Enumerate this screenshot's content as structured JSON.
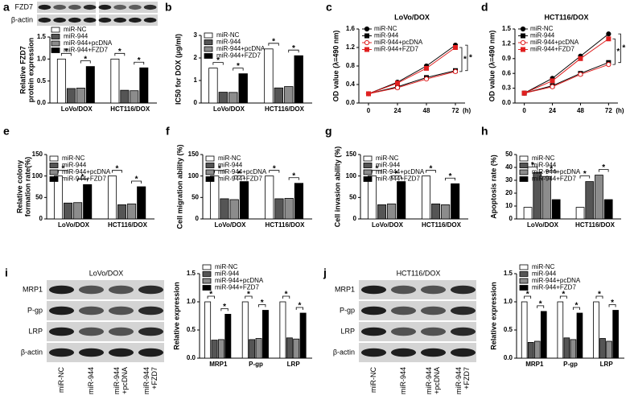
{
  "blots": [
    {
      "panel": "a",
      "rows": [
        "FZD7",
        "β-actin"
      ]
    },
    {
      "panel": "i",
      "title": "LoVo/DOX",
      "rows": [
        "MRP1",
        "P-gp",
        "LRP",
        "β-actin"
      ],
      "lanes": [
        [
          "miR-NC"
        ],
        [
          "miR-944"
        ],
        [
          "miR-944",
          "+pcDNA"
        ],
        [
          "miR-944",
          "+FZD7"
        ]
      ]
    },
    {
      "panel": "j",
      "title": "HCT116/DOX",
      "rows": [
        "MRP1",
        "P-gp",
        "LRP",
        "β-actin"
      ],
      "lanes": [
        [
          "miR-NC"
        ],
        [
          "miR-944"
        ],
        [
          "miR-944",
          "+pcDNA"
        ],
        [
          "miR-944",
          "+FZD7"
        ]
      ]
    }
  ],
  "chart_data": [
    {
      "type": "bar",
      "ylabel": [
        "Relative FZD7",
        "protein expression"
      ],
      "categories": [
        "LoVo/DOX",
        "HCT116/DOX"
      ],
      "series": [
        {
          "name": "miR-NC",
          "color": "#ffffff",
          "values": [
            1.0,
            1.0
          ]
        },
        {
          "name": "miR-944",
          "color": "#555555",
          "values": [
            0.33,
            0.29
          ]
        },
        {
          "name": "miR-944+pcDNA",
          "color": "#8c8c8c",
          "values": [
            0.34,
            0.28
          ]
        },
        {
          "name": "miR-944+FZD7",
          "color": "#000000",
          "values": [
            0.83,
            0.8
          ]
        }
      ],
      "ylim": [
        0,
        1.5
      ],
      "yticks": [
        {
          "value": 0,
          "label": "0.0"
        },
        0.5,
        {
          "value": 1,
          "label": "1.0"
        },
        1.5
      ],
      "significance": [
        [
          "*",
          "*"
        ],
        [
          "*",
          "*"
        ]
      ]
    },
    {
      "type": "bar",
      "panel": "b",
      "ylabel": [
        "IC50 for DOX (μg/ml)"
      ],
      "categories": [
        "LoVo/DOX",
        "HCT116/DOX"
      ],
      "series": [
        {
          "name": "miR-NC",
          "color": "#ffffff",
          "values": [
            1.55,
            2.4
          ]
        },
        {
          "name": "miR-944",
          "color": "#555555",
          "values": [
            0.48,
            0.67
          ]
        },
        {
          "name": "miR-944+pcDNA",
          "color": "#8c8c8c",
          "values": [
            0.47,
            0.73
          ]
        },
        {
          "name": "miR-944+FZD7",
          "color": "#000000",
          "values": [
            1.3,
            2.1
          ]
        }
      ],
      "ylim": [
        0,
        3
      ],
      "yticks": [
        0,
        1,
        2,
        3
      ],
      "significance": [
        [
          "*",
          "*"
        ],
        [
          "*",
          "*"
        ]
      ]
    },
    {
      "type": "line",
      "panel": "c",
      "title": "LoVo/DOX",
      "ylabel": [
        "OD value (λ=490 nm)"
      ],
      "xlabel": "(h)",
      "x": [
        0,
        24,
        48,
        72
      ],
      "series": [
        {
          "name": "miR-NC",
          "color": "#000000",
          "fill": "#000000",
          "marker": "circle",
          "values": [
            0.2,
            0.45,
            0.8,
            1.25
          ]
        },
        {
          "name": "miR-944",
          "color": "#000000",
          "fill": "#000000",
          "marker": "square",
          "values": [
            0.2,
            0.35,
            0.55,
            0.7
          ]
        },
        {
          "name": "miR-944+pcDNA",
          "color": "#e02020",
          "fill": "#ffffff",
          "marker": "circle",
          "values": [
            0.2,
            0.33,
            0.52,
            0.68
          ]
        },
        {
          "name": "miR-944+FZD7",
          "color": "#e02020",
          "fill": "#e02020",
          "marker": "square",
          "values": [
            0.2,
            0.43,
            0.75,
            1.2
          ]
        }
      ],
      "xlim": [
        -8,
        80
      ],
      "xticks": [
        0,
        24,
        48,
        72
      ],
      "ylim": [
        0,
        1.6
      ],
      "yticks": [
        {
          "value": 0,
          "label": "0.0"
        },
        0.4,
        0.8,
        1.2,
        1.6
      ],
      "significance": [
        "*",
        "*"
      ]
    },
    {
      "type": "line",
      "panel": "d",
      "title": "HCT116/DOX",
      "ylabel": [
        "OD value (λ=490 nm)"
      ],
      "xlabel": "(h)",
      "x": [
        0,
        24,
        48,
        72
      ],
      "series": [
        {
          "name": "miR-NC",
          "color": "#000000",
          "fill": "#000000",
          "marker": "circle",
          "values": [
            0.2,
            0.5,
            0.95,
            1.4
          ]
        },
        {
          "name": "miR-944",
          "color": "#000000",
          "fill": "#000000",
          "marker": "square",
          "values": [
            0.2,
            0.35,
            0.6,
            0.82
          ]
        },
        {
          "name": "miR-944+pcDNA",
          "color": "#e02020",
          "fill": "#ffffff",
          "marker": "circle",
          "values": [
            0.2,
            0.33,
            0.58,
            0.78
          ]
        },
        {
          "name": "miR-944+FZD7",
          "color": "#e02020",
          "fill": "#e02020",
          "marker": "square",
          "values": [
            0.2,
            0.45,
            0.9,
            1.3
          ]
        }
      ],
      "xlim": [
        -8,
        80
      ],
      "xticks": [
        0,
        24,
        48,
        72
      ],
      "ylim": [
        0,
        1.5
      ],
      "yticks": [
        {
          "value": 0,
          "label": "0.0"
        },
        0.3,
        0.6,
        0.9,
        1.2,
        1.5
      ],
      "significance": [
        "*",
        "*"
      ]
    },
    {
      "type": "bar",
      "panel": "e",
      "ylabel": [
        "Relative colony",
        "formation rate(%)"
      ],
      "categories": [
        "LoVo/DOX",
        "HCT116/DOX"
      ],
      "series": [
        {
          "name": "miR-NC",
          "color": "#ffffff",
          "values": [
            100,
            100
          ]
        },
        {
          "name": "miR-944",
          "color": "#555555",
          "values": [
            37,
            33
          ]
        },
        {
          "name": "miR-944+pcDNA",
          "color": "#8c8c8c",
          "values": [
            38,
            35
          ]
        },
        {
          "name": "miR-944+FZD7",
          "color": "#000000",
          "values": [
            80,
            75
          ]
        }
      ],
      "ylim": [
        0,
        150
      ],
      "yticks": [
        0,
        50,
        100,
        150
      ],
      "significance": [
        [
          "*",
          "*"
        ],
        [
          "*",
          "*"
        ]
      ]
    },
    {
      "type": "bar",
      "panel": "f",
      "ylabel": [
        "Cell migration ability (%)"
      ],
      "categories": [
        "LoVo/DOX",
        "HCT116/DOX"
      ],
      "series": [
        {
          "name": "miR-NC",
          "color": "#ffffff",
          "values": [
            100,
            100
          ]
        },
        {
          "name": "miR-944",
          "color": "#555555",
          "values": [
            47,
            47
          ]
        },
        {
          "name": "miR-944+pcDNA",
          "color": "#8c8c8c",
          "values": [
            45,
            48
          ]
        },
        {
          "name": "miR-944+FZD7",
          "color": "#000000",
          "values": [
            87,
            83
          ]
        }
      ],
      "ylim": [
        0,
        150
      ],
      "yticks": [
        0,
        50,
        100,
        150
      ],
      "significance": [
        [
          "*",
          "*"
        ],
        [
          "*",
          "*"
        ]
      ]
    },
    {
      "type": "bar",
      "panel": "g",
      "ylabel": [
        "Cell invasion ability (%)"
      ],
      "categories": [
        "LoVo/DOX",
        "HCT116/DOX"
      ],
      "series": [
        {
          "name": "miR-NC",
          "color": "#ffffff",
          "values": [
            100,
            100
          ]
        },
        {
          "name": "miR-944",
          "color": "#555555",
          "values": [
            33,
            35
          ]
        },
        {
          "name": "miR-944+pcDNA",
          "color": "#8c8c8c",
          "values": [
            35,
            33
          ]
        },
        {
          "name": "miR-944+FZD7",
          "color": "#000000",
          "values": [
            87,
            82
          ]
        }
      ],
      "ylim": [
        0,
        150
      ],
      "yticks": [
        0,
        50,
        100,
        150
      ],
      "significance": [
        [
          "*",
          "*"
        ],
        [
          "*",
          "*"
        ]
      ]
    },
    {
      "type": "bar",
      "panel": "h",
      "ylabel": [
        "Apoptosis rate (%)"
      ],
      "categories": [
        "LoVo/DOX",
        "HCT116/DOX"
      ],
      "series": [
        {
          "name": "miR-NC",
          "color": "#ffffff",
          "values": [
            9,
            9
          ]
        },
        {
          "name": "miR-944",
          "color": "#555555",
          "values": [
            36,
            29
          ]
        },
        {
          "name": "miR-944+pcDNA",
          "color": "#8c8c8c",
          "values": [
            33,
            34
          ]
        },
        {
          "name": "miR-944+FZD7",
          "color": "#000000",
          "values": [
            15,
            15
          ]
        }
      ],
      "ylim": [
        0,
        50
      ],
      "yticks": [
        0,
        10,
        20,
        30,
        40,
        50
      ],
      "significance": [
        [
          "*",
          "*"
        ],
        [
          "*",
          "*"
        ]
      ]
    },
    {
      "type": "bar",
      "ylabel": [
        "Relative expression"
      ],
      "categories": [
        "MRP1",
        "P-gp",
        "LRP"
      ],
      "series": [
        {
          "name": "miR-NC",
          "color": "#ffffff",
          "values": [
            1.0,
            1.0,
            1.0
          ]
        },
        {
          "name": "miR-944",
          "color": "#555555",
          "values": [
            0.32,
            0.33,
            0.36
          ]
        },
        {
          "name": "miR-944+pcDNA",
          "color": "#8c8c8c",
          "values": [
            0.33,
            0.35,
            0.34
          ]
        },
        {
          "name": "miR-944+FZD7",
          "color": "#000000",
          "values": [
            0.78,
            0.85,
            0.8
          ]
        }
      ],
      "ylim": [
        0,
        1.5
      ],
      "yticks": [
        {
          "value": 0,
          "label": "0.0"
        },
        0.5,
        {
          "value": 1,
          "label": "1.0"
        },
        1.5
      ],
      "significance": [
        [
          "*",
          "*"
        ],
        [
          "*",
          "*"
        ],
        [
          "*",
          "*"
        ]
      ]
    },
    {
      "type": "bar",
      "ylabel": [
        "Relative expression"
      ],
      "categories": [
        "MRP1",
        "P-gp",
        "LRP"
      ],
      "series": [
        {
          "name": "miR-NC",
          "color": "#ffffff",
          "values": [
            1.0,
            1.0,
            1.0
          ]
        },
        {
          "name": "miR-944",
          "color": "#555555",
          "values": [
            0.28,
            0.36,
            0.35
          ]
        },
        {
          "name": "miR-944+pcDNA",
          "color": "#8c8c8c",
          "values": [
            0.3,
            0.33,
            0.3
          ]
        },
        {
          "name": "miR-944+FZD7",
          "color": "#000000",
          "values": [
            0.83,
            0.8,
            0.85
          ]
        }
      ],
      "ylim": [
        0,
        1.5
      ],
      "yticks": [
        {
          "value": 0,
          "label": "0.0"
        },
        0.5,
        {
          "value": 1,
          "label": "1.0"
        },
        1.5
      ],
      "significance": [
        [
          "*",
          "*"
        ],
        [
          "*",
          "*"
        ],
        [
          "*",
          "*"
        ]
      ]
    }
  ]
}
